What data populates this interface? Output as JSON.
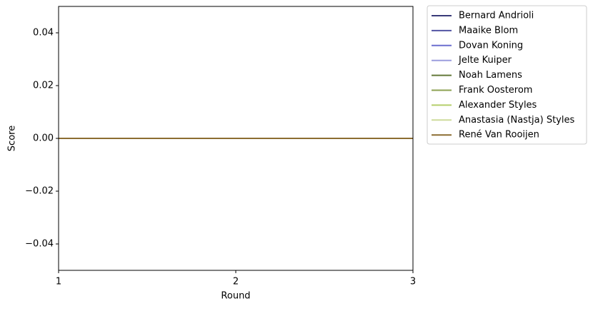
{
  "chart_data": {
    "type": "line",
    "x": [
      1,
      2,
      3
    ],
    "xlabel": "Round",
    "ylabel": "Score",
    "xlim": [
      1,
      3
    ],
    "xticks": [
      1,
      2,
      3
    ],
    "ylim": [
      -0.05,
      0.05
    ],
    "yticks": [
      {
        "value": -0.04,
        "label": "−0.04"
      },
      {
        "value": -0.02,
        "label": "−0.02"
      },
      {
        "value": 0,
        "label": "0.00"
      },
      0.02,
      0.04
    ],
    "legend": "outside-right",
    "series": [
      {
        "name": "Bernard Andrioli",
        "color": "#393b79",
        "values": [
          0,
          0,
          0
        ]
      },
      {
        "name": "Maaike Blom",
        "color": "#5254a3",
        "values": [
          0,
          0,
          0
        ]
      },
      {
        "name": "Dovan Koning",
        "color": "#6b6ecf",
        "values": [
          0,
          0,
          0
        ]
      },
      {
        "name": "Jelte Kuiper",
        "color": "#9c9ede",
        "values": [
          0,
          0,
          0
        ]
      },
      {
        "name": "Noah Lamens",
        "color": "#637939",
        "values": [
          0,
          0,
          0
        ]
      },
      {
        "name": "Frank Oosterom",
        "color": "#8ca252",
        "values": [
          0,
          0,
          0
        ]
      },
      {
        "name": "Alexander Styles",
        "color": "#b5cf6b",
        "values": [
          0,
          0,
          0
        ]
      },
      {
        "name": "Anastasia (Nastja) Styles",
        "color": "#cedb9c",
        "values": [
          0,
          0,
          0
        ]
      },
      {
        "name": "René Van Rooijen",
        "color": "#8c6d31",
        "values": [
          0,
          0,
          0
        ]
      }
    ]
  }
}
